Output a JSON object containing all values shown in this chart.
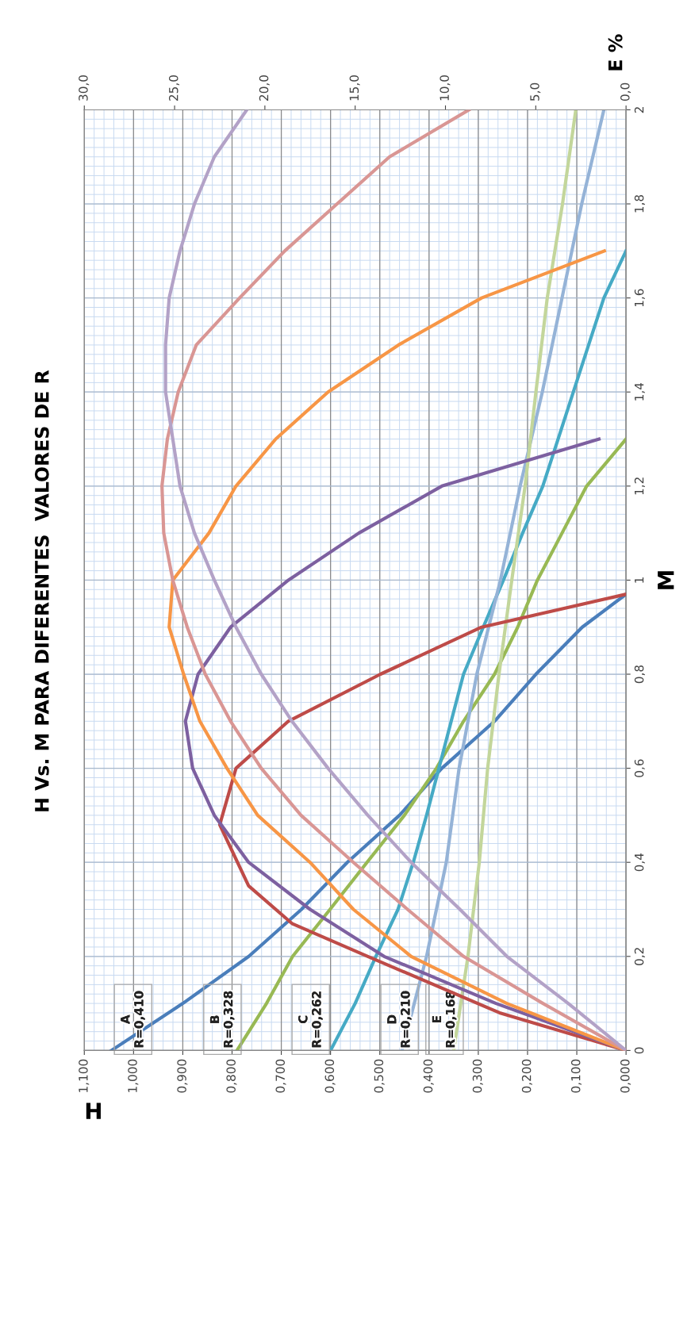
{
  "chart_data": {
    "type": "line",
    "title": "H Vs. M PARA DIFERENTES  VALORES DE R",
    "xlabel": "H",
    "ylabel": "M",
    "x2label": "E %",
    "ylim": [
      0,
      2
    ],
    "yticks": [
      0,
      {
        "value": 0.2,
        "label": "0,2"
      },
      {
        "value": 0.4,
        "label": "0,4"
      },
      {
        "value": 0.6,
        "label": "0,6"
      },
      {
        "value": 0.8,
        "label": "0,8"
      },
      1,
      {
        "value": 1.2,
        "label": "1,2"
      },
      {
        "value": 1.4,
        "label": "1,4"
      },
      {
        "value": 1.6,
        "label": "1,6"
      },
      {
        "value": 1.8,
        "label": "1,8"
      },
      2
    ],
    "xlim": [
      1.1,
      0
    ],
    "xticks": [
      {
        "value": 0,
        "label": "0,000"
      },
      {
        "value": 0.1,
        "label": "0,100"
      },
      {
        "value": 0.2,
        "label": "0,200"
      },
      {
        "value": 0.3,
        "label": "0,300"
      },
      {
        "value": 0.4,
        "label": "0,400"
      },
      {
        "value": 0.5,
        "label": "0,500"
      },
      {
        "value": 0.6,
        "label": "0,600"
      },
      {
        "value": 0.7,
        "label": "0,700"
      },
      {
        "value": 0.8,
        "label": "0,800"
      },
      {
        "value": 0.9,
        "label": "0,900"
      },
      {
        "value": 1.0,
        "label": "1,000"
      },
      {
        "value": 1.1,
        "label": "1,100"
      }
    ],
    "x2lim": [
      30,
      0
    ],
    "x2ticks": [
      {
        "value": 0,
        "label": "0,0"
      },
      {
        "value": 5,
        "label": "5,0"
      },
      {
        "value": 10,
        "label": "10,0"
      },
      {
        "value": 15,
        "label": "15,0"
      },
      {
        "value": 20,
        "label": "20,0"
      },
      {
        "value": 25,
        "label": "25,0"
      },
      {
        "value": 30,
        "label": "30,0"
      }
    ],
    "grid": true,
    "marker": "none",
    "line_style": "solid",
    "series": [
      {
        "color": "#4a7ebb",
        "values": [
          0,
          0.1,
          0.2,
          0.3,
          0.4,
          0.5,
          0.6,
          0.7,
          0.8,
          0.9,
          0.97
        ],
        "x": [
          1.045,
          0.9,
          0.766,
          0.659,
          0.566,
          0.46,
          0.374,
          0.267,
          0.183,
          0.089,
          0
        ]
      },
      {
        "color": "#98b954",
        "values": [
          0,
          0.1,
          0.2,
          0.3,
          0.4,
          0.5,
          0.6,
          0.7,
          0.8,
          0.9,
          1.0,
          1.1,
          1.2,
          1.3
        ],
        "x": [
          0.79,
          0.73,
          0.677,
          0.601,
          0.526,
          0.45,
          0.385,
          0.33,
          0.267,
          0.22,
          0.18,
          0.13,
          0.08,
          0
        ]
      },
      {
        "color": "#46aac5",
        "values": [
          0,
          0.1,
          0.2,
          0.3,
          0.4,
          0.5,
          0.6,
          0.7,
          0.8,
          0.9,
          1.0,
          1.1,
          1.2,
          1.3,
          1.4,
          1.5,
          1.6,
          1.7
        ],
        "x": [
          0.6,
          0.55,
          0.508,
          0.463,
          0.432,
          0.405,
          0.38,
          0.355,
          0.33,
          0.29,
          0.249,
          0.21,
          0.169,
          0.138,
          0.107,
          0.076,
          0.045,
          0
        ]
      },
      {
        "color": "#95b3d7",
        "values": [
          0,
          0.2,
          0.4,
          0.6,
          0.8,
          1.0,
          1.2,
          1.4,
          1.6,
          1.8,
          2.0
        ],
        "x": [
          0.455,
          0.405,
          0.365,
          0.339,
          0.303,
          0.255,
          0.215,
          0.17,
          0.13,
          0.09,
          0.045
        ]
      },
      {
        "color": "#c3d69b",
        "values": [
          0,
          0.2,
          0.4,
          0.6,
          0.8,
          1.0,
          1.2,
          1.4,
          1.6,
          1.8,
          2.0
        ],
        "x": [
          0.35,
          0.321,
          0.298,
          0.281,
          0.258,
          0.232,
          0.205,
          0.183,
          0.16,
          0.129,
          0.102
        ]
      },
      {
        "color": "#be4b48",
        "axis": "x2",
        "values": [
          0,
          0.08,
          0.2,
          0.27,
          0.35,
          0.48,
          0.6,
          0.7,
          0.8,
          0.9,
          0.97
        ],
        "x": [
          0,
          7.0,
          14.3,
          18.5,
          20.9,
          22.5,
          21.6,
          18.7,
          13.6,
          8.0,
          0
        ]
      },
      {
        "color": "#7d60a0",
        "axis": "x2",
        "values": [
          0,
          0.1,
          0.2,
          0.3,
          0.4,
          0.5,
          0.6,
          0.7,
          0.8,
          0.9,
          1.0,
          1.1,
          1.2,
          1.3
        ],
        "x": [
          0,
          7.2,
          13.4,
          17.5,
          20.9,
          22.8,
          24.0,
          24.4,
          23.7,
          21.9,
          18.7,
          14.8,
          10.2,
          1.5
        ]
      },
      {
        "color": "#f79646",
        "axis": "x2",
        "values": [
          0,
          0.1,
          0.2,
          0.3,
          0.4,
          0.5,
          0.6,
          0.7,
          0.8,
          0.9,
          1.0,
          1.1,
          1.2,
          1.3,
          1.4,
          1.5,
          1.6,
          1.7
        ],
        "x": [
          0,
          6.6,
          11.9,
          15.1,
          17.5,
          20.4,
          22.1,
          23.6,
          24.5,
          25.3,
          25.1,
          23.1,
          21.6,
          19.4,
          16.5,
          12.6,
          8.0,
          1.2
        ]
      },
      {
        "color": "#d99694",
        "axis": "x2",
        "values": [
          0,
          0.1,
          0.2,
          0.3,
          0.4,
          0.5,
          0.6,
          0.7,
          0.8,
          0.9,
          1.0,
          1.1,
          1.2,
          1.3,
          1.4,
          1.5,
          1.6,
          1.7,
          1.8,
          1.9,
          2.0
        ],
        "x": [
          0,
          4.6,
          9.0,
          12.1,
          15.1,
          18.0,
          20.2,
          21.9,
          23.3,
          24.3,
          25.1,
          25.6,
          25.7,
          25.4,
          24.8,
          23.8,
          21.4,
          18.9,
          16.0,
          13.1,
          8.7
        ]
      },
      {
        "color": "#b3a2c7",
        "axis": "x2",
        "values": [
          0,
          0.1,
          0.2,
          0.3,
          0.4,
          0.5,
          0.6,
          0.7,
          0.8,
          0.9,
          1.0,
          1.1,
          1.2,
          1.3,
          1.4,
          1.5,
          1.6,
          1.7,
          1.8,
          1.9,
          2.0
        ],
        "x": [
          0,
          3.2,
          6.6,
          9.2,
          11.9,
          14.3,
          16.5,
          18.5,
          20.2,
          21.6,
          22.8,
          23.9,
          24.7,
          25.1,
          25.5,
          25.5,
          25.3,
          24.7,
          23.9,
          22.8,
          21.0
        ]
      }
    ],
    "annotations": [
      "A\nR=0,410",
      "B\nR=0,328",
      "C\nR=0,262",
      "D\nR=0,210",
      "E\nR=0,168"
    ]
  }
}
